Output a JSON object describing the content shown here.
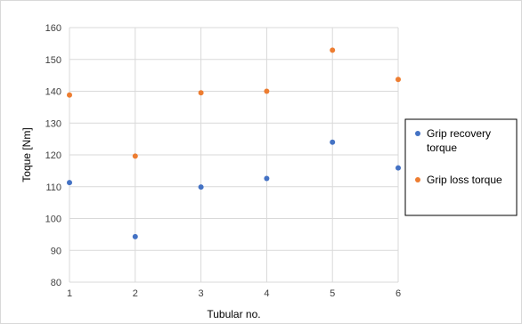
{
  "chart_data": {
    "type": "scatter",
    "xlabel": "Tubular no.",
    "ylabel": "Toque [Nm]",
    "xlim": [
      1,
      6
    ],
    "ylim": [
      80,
      160
    ],
    "x_ticks": [
      1,
      2,
      3,
      4,
      5,
      6
    ],
    "y_ticks": [
      80,
      90,
      100,
      110,
      120,
      130,
      140,
      150,
      160
    ],
    "grid": true,
    "legend_position": "right",
    "series": [
      {
        "name": "Grip recovery torque",
        "legend_lines": [
          "Grip recovery",
          "torque"
        ],
        "color": "#4472C4",
        "x": [
          1,
          2,
          3,
          4,
          5,
          6
        ],
        "y": [
          111.3,
          94.3,
          109.9,
          112.6,
          124.0,
          115.9
        ]
      },
      {
        "name": "Grip loss torque",
        "legend_lines": [
          "Grip loss torque"
        ],
        "color": "#ED7D31",
        "x": [
          1,
          2,
          3,
          4,
          5,
          6
        ],
        "y": [
          138.8,
          119.6,
          139.5,
          140.0,
          152.9,
          143.7
        ]
      }
    ]
  }
}
